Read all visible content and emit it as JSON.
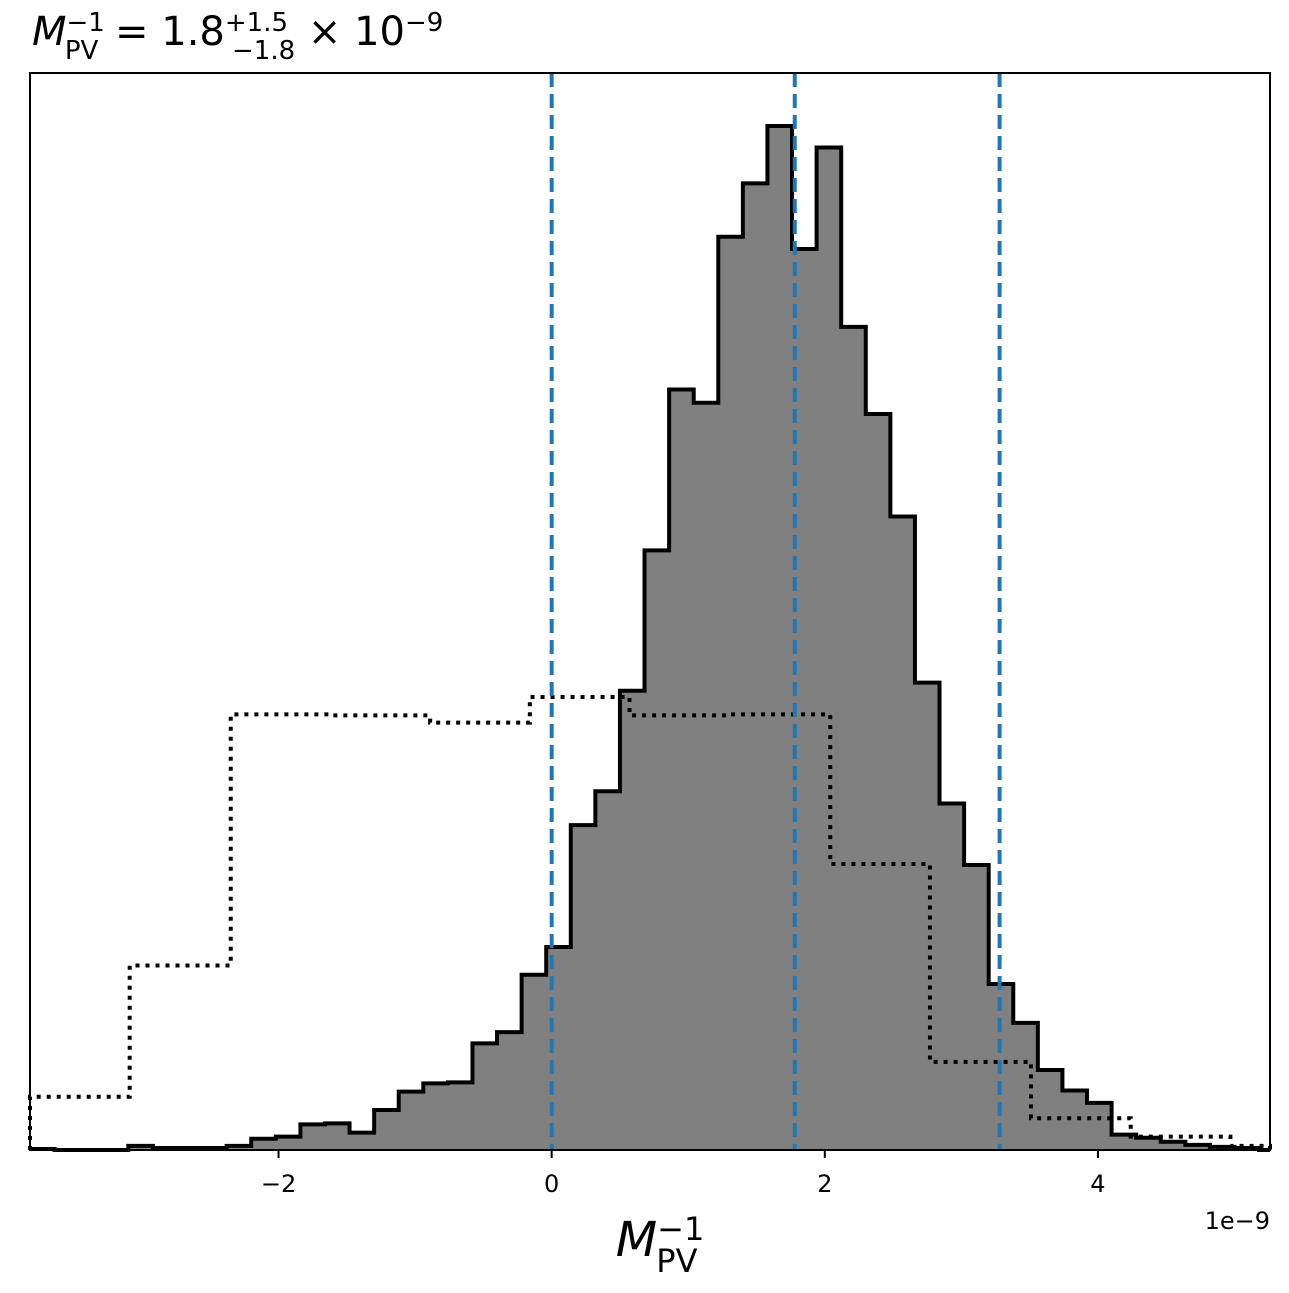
{
  "chart_data": {
    "type": "histogram",
    "title": {
      "symbol": "M",
      "sub": "PV",
      "sup": "−1",
      "value": " = 1.8",
      "err_plus": "+1.5",
      "err_minus": "−1.8",
      "times": " × 10",
      "exp": "−9"
    },
    "xlabel": {
      "symbol": "M",
      "sub": "PV",
      "sup": "−1"
    },
    "x_offset_text": "1e−9",
    "xlim": [
      -3.82,
      5.26
    ],
    "ylim": [
      0,
      1.0
    ],
    "x_scale": 1e-09,
    "x_ticks": [
      {
        "value": -2,
        "label": "−2"
      },
      {
        "value": 0,
        "label": "0"
      },
      {
        "value": 2,
        "label": "2"
      },
      {
        "value": 4,
        "label": "4"
      }
    ],
    "posterior": {
      "style": "filled-step",
      "fill_color": "#808080",
      "edge_color": "#000000",
      "bin_edges": [
        -3.82,
        -3.64,
        -3.46,
        -3.28,
        -3.1,
        -2.92,
        -2.74,
        -2.56,
        -2.38,
        -2.2,
        -2.02,
        -1.84,
        -1.66,
        -1.48,
        -1.3,
        -1.12,
        -0.94,
        -0.76,
        -0.58,
        -0.4,
        -0.22,
        -0.04,
        0.14,
        0.32,
        0.5,
        0.68,
        0.86,
        1.04,
        1.22,
        1.4,
        1.58,
        1.76,
        1.94,
        2.12,
        2.3,
        2.48,
        2.66,
        2.84,
        3.02,
        3.2,
        3.38,
        3.56,
        3.74,
        3.92,
        4.1,
        4.28,
        4.46,
        4.64,
        4.82,
        5.0,
        5.18,
        5.26
      ],
      "values": [
        0.001,
        0.0,
        0.0,
        0.0,
        0.004,
        0.002,
        0.002,
        0.002,
        0.004,
        0.011,
        0.013,
        0.025,
        0.026,
        0.017,
        0.039,
        0.057,
        0.065,
        0.066,
        0.104,
        0.115,
        0.171,
        0.198,
        0.317,
        0.35,
        0.448,
        0.585,
        0.742,
        0.729,
        0.891,
        0.943,
        0.999,
        0.879,
        0.978,
        0.803,
        0.718,
        0.618,
        0.456,
        0.338,
        0.278,
        0.162,
        0.124,
        0.078,
        0.058,
        0.046,
        0.015,
        0.012,
        0.008,
        0.005,
        0.003,
        0.002,
        0.0
      ]
    },
    "prior": {
      "style": "dotted-step",
      "edge_color": "#000000",
      "bin_edges": [
        -3.82,
        -3.09,
        -2.35,
        -1.62,
        -0.89,
        -0.16,
        0.57,
        1.31,
        2.04,
        2.77,
        3.51,
        4.24,
        4.97,
        5.26
      ],
      "values": [
        0.052,
        0.18,
        0.425,
        0.424,
        0.417,
        0.442,
        0.424,
        0.425,
        0.279,
        0.086,
        0.031,
        0.013,
        0.004
      ]
    },
    "quantile_lines": {
      "color": "#1f77b4",
      "style": "dashed",
      "values": [
        0.0,
        1.78,
        3.28
      ]
    },
    "grid": false,
    "legend": "none"
  }
}
